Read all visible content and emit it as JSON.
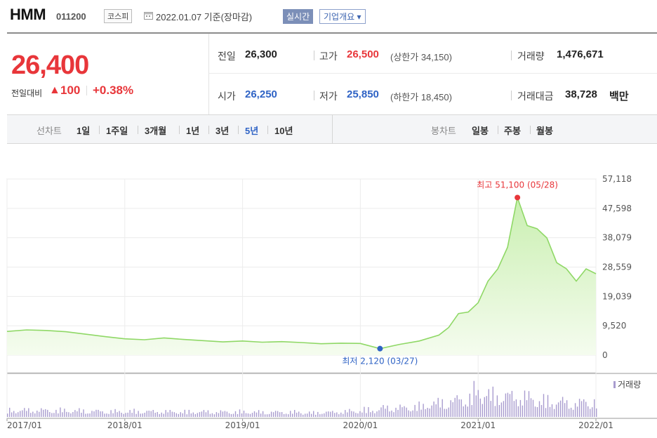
{
  "header": {
    "name": "HMM",
    "code": "011200",
    "market": "코스피",
    "date": "2022.01.07 기준(장마감)",
    "live": "실시간",
    "overview": "기업개요 ▾"
  },
  "price": {
    "current": "26,400",
    "change_label": "전일대비",
    "change_arrow": "▲",
    "change": "100",
    "change_pct": "+0.38%"
  },
  "stats": {
    "prev_label": "전일",
    "prev": "26,300",
    "open_label": "시가",
    "open": "26,250",
    "high_label": "고가",
    "high": "26,500",
    "upper_limit": "(상한가 34,150)",
    "low_label": "저가",
    "low": "25,850",
    "lower_limit": "(하한가 18,450)",
    "volume_label": "거래량",
    "volume": "1,476,671",
    "amount_label": "거래대금",
    "amount": "38,728",
    "amount_unit": "백만"
  },
  "periods": {
    "line_label": "선차트",
    "items": [
      "1일",
      "1주일",
      "3개월",
      "1년",
      "3년",
      "5년",
      "10년"
    ],
    "active": "5년",
    "candle_label": "봉차트",
    "candle_items": [
      "일봉",
      "주봉",
      "월봉"
    ]
  },
  "chart_data": {
    "type": "area",
    "x": [
      "2017/01",
      "2017/03",
      "2017/05",
      "2017/07",
      "2017/09",
      "2017/11",
      "2018/01",
      "2018/03",
      "2018/05",
      "2018/07",
      "2018/09",
      "2018/11",
      "2019/01",
      "2019/03",
      "2019/05",
      "2019/07",
      "2019/09",
      "2019/11",
      "2020/01",
      "2020/03",
      "2020/05",
      "2020/07",
      "2020/09",
      "2020/10",
      "2020/11",
      "2020/12",
      "2021/01",
      "2021/02",
      "2021/03",
      "2021/04",
      "2021/05",
      "2021/06",
      "2021/07",
      "2021/08",
      "2021/09",
      "2021/10",
      "2021/11",
      "2021/12",
      "2022/01"
    ],
    "series": [
      {
        "values": [
          7700,
          8200,
          8000,
          7600,
          6800,
          6000,
          5300,
          5000,
          5600,
          5100,
          4700,
          4300,
          4600,
          4200,
          4400,
          4100,
          3700,
          3900,
          3800,
          2120,
          3500,
          4600,
          6500,
          9000,
          13500,
          14000,
          17000,
          24000,
          28000,
          35000,
          51100,
          42000,
          41000,
          38000,
          30000,
          28000,
          24000,
          28000,
          26400
        ]
      }
    ],
    "volume_label": "거래량",
    "ylim": [
      0,
      57118
    ],
    "yticks": [
      "57,118",
      "47,598",
      "38,079",
      "28,559",
      "19,039",
      "9,520",
      "0"
    ],
    "xticks": [
      "2017/01",
      "2018/01",
      "2019/01",
      "2020/01",
      "2021/01",
      "2022/01"
    ],
    "high_annotation": "최고 51,100 (05/28)",
    "low_annotation": "최저 2,120 (03/27)",
    "colors": {
      "line": "#8fd866",
      "fill_top": "#c9efb0",
      "fill_bottom": "#f5fcef",
      "high": "#e8363a",
      "low": "#2f63c5",
      "volume": "#a99ccf"
    }
  }
}
